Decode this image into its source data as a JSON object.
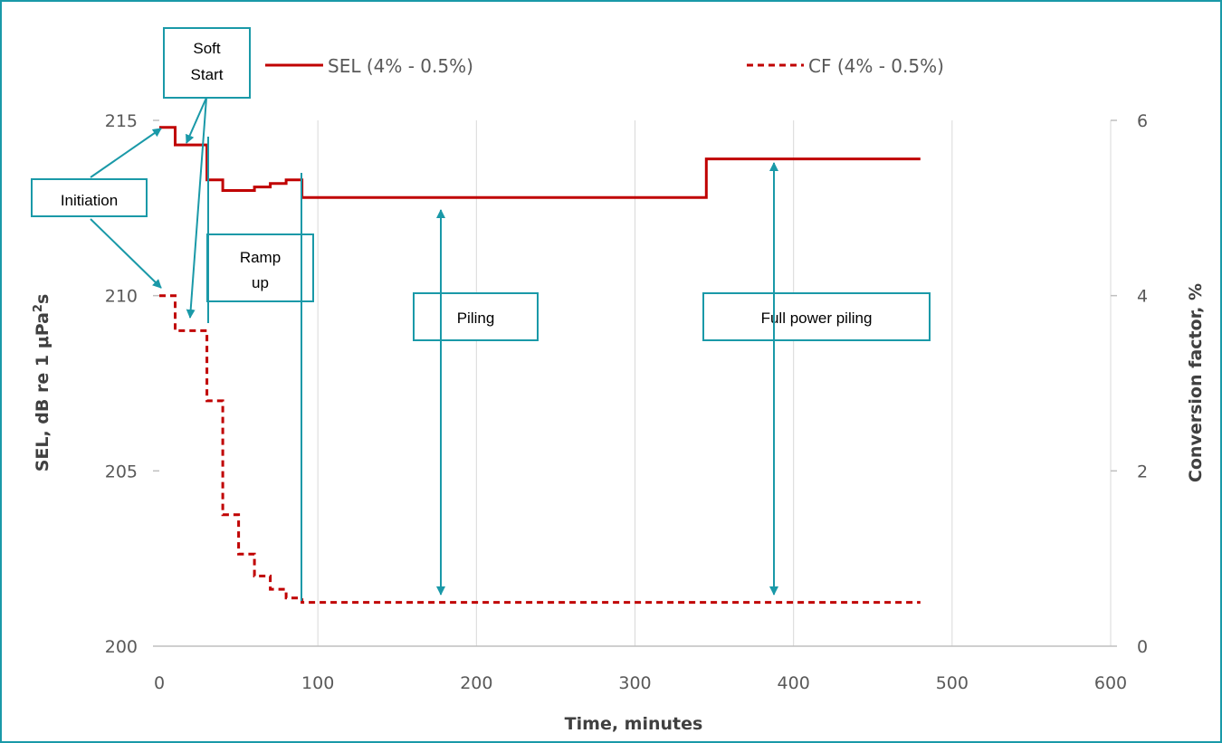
{
  "chart_data": {
    "type": "line",
    "xlabel": "Time, minutes",
    "ylabel_left": "SEL, dB re 1 μPa",
    "ylabel_left_sup": "2",
    "ylabel_left_tail": "s",
    "ylabel_right": "Conversion factor, %",
    "xlim": [
      0,
      600
    ],
    "ylim_left": [
      200,
      215
    ],
    "ylim_right": [
      0,
      6
    ],
    "x_ticks": [
      "0",
      "100",
      "200",
      "300",
      "400",
      "500",
      "600"
    ],
    "y_left_ticks": [
      "200",
      "205",
      "210",
      "215"
    ],
    "y_right_ticks": [
      "0",
      "2",
      "4",
      "6"
    ],
    "grid": "vertical",
    "legend_position": "top",
    "series": [
      {
        "name": "SEL (4% - 0.5%)",
        "axis": "left",
        "style": "solid",
        "color": "#c00000",
        "x": [
          0,
          10,
          10,
          30,
          30,
          40,
          40,
          60,
          60,
          70,
          70,
          80,
          80,
          90,
          90,
          345,
          345,
          480
        ],
        "y": [
          214.8,
          214.8,
          214.3,
          214.3,
          213.3,
          213.3,
          213.0,
          213.0,
          213.1,
          213.1,
          213.2,
          213.2,
          213.3,
          213.3,
          212.8,
          212.8,
          213.9,
          213.9
        ]
      },
      {
        "name": "CF (4% - 0.5%)",
        "axis": "right",
        "style": "dashed",
        "color": "#c00000",
        "x": [
          0,
          10,
          10,
          30,
          30,
          40,
          40,
          50,
          50,
          60,
          60,
          70,
          70,
          80,
          80,
          90,
          90,
          480
        ],
        "y": [
          4.0,
          4.0,
          3.6,
          3.6,
          2.8,
          2.8,
          1.5,
          1.5,
          1.05,
          1.05,
          0.8,
          0.8,
          0.65,
          0.65,
          0.55,
          0.55,
          0.5,
          0.5
        ]
      }
    ],
    "annotations": [
      {
        "lines": [
          "Soft",
          "Start"
        ]
      },
      {
        "lines": [
          "Initiation"
        ]
      },
      {
        "lines": [
          "Ramp",
          "up"
        ]
      },
      {
        "lines": [
          "Piling"
        ]
      },
      {
        "lines": [
          "Full power piling"
        ]
      }
    ],
    "annotation_color": "#1a99a8"
  }
}
